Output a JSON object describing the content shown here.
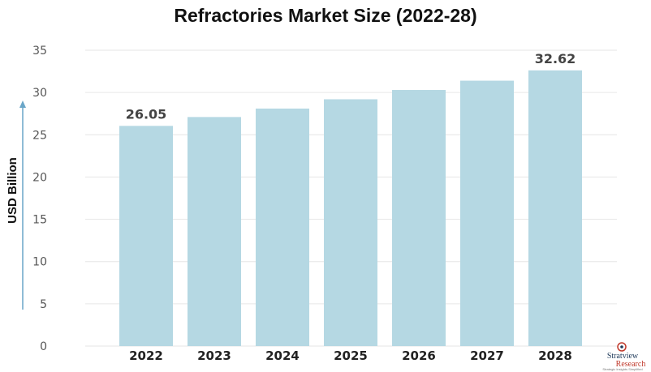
{
  "chart_data": {
    "type": "bar",
    "title": "Refractories Market Size (2022-28)",
    "ylabel": "USD Billion",
    "xlabel": "",
    "categories": [
      "2022",
      "2023",
      "2024",
      "2025",
      "2026",
      "2027",
      "2028"
    ],
    "values": [
      26.05,
      27.1,
      28.1,
      29.2,
      30.3,
      31.4,
      32.62
    ],
    "data_labels": [
      "26.05",
      "",
      "",
      "",
      "",
      "",
      "32.62"
    ],
    "ylim": [
      0,
      35
    ],
    "yticks": [
      0,
      5,
      10,
      15,
      20,
      25,
      30,
      35
    ],
    "grid": true,
    "bar_color": "#b5d8e3",
    "axis_arrow_color": "#6aa6c8"
  },
  "logo": {
    "name": "Stratview",
    "name_sub": "Research",
    "tagline": "Strategic Insights Simplified"
  }
}
